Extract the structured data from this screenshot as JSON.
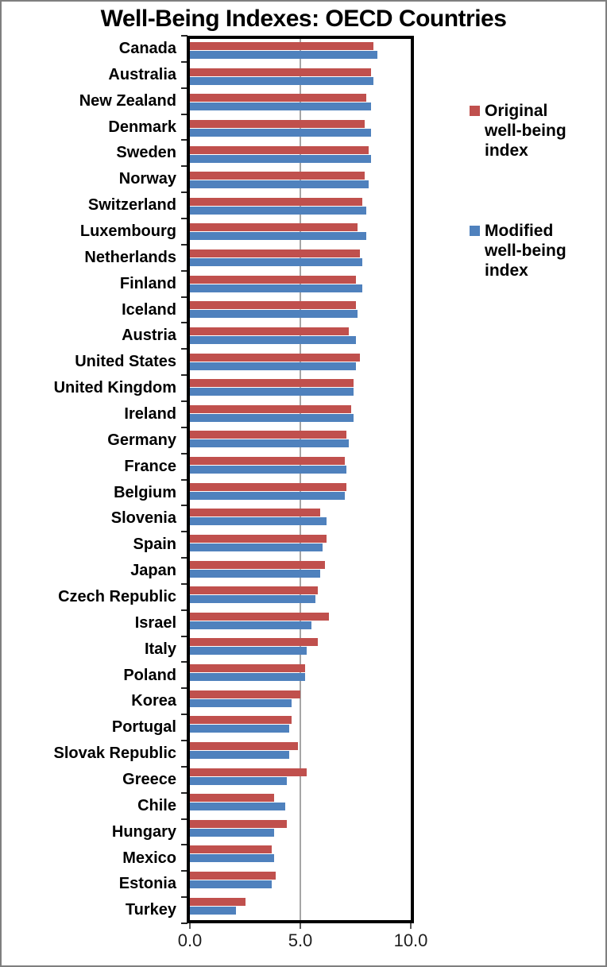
{
  "title": "Well-Being Indexes: OECD Countries",
  "legend": [
    {
      "label": "Original well-being index",
      "color": "#C0504D"
    },
    {
      "label": "Modified well-being index",
      "color": "#4F81BD"
    }
  ],
  "chart_data": {
    "type": "bar",
    "orientation": "horizontal",
    "title": "Well-Being Indexes: OECD Countries",
    "xlabel": "",
    "ylabel": "",
    "xlim": [
      0,
      10
    ],
    "x_tick_labels": [
      "0.0",
      "5.0",
      "10.0"
    ],
    "x_tick_values": [
      0,
      5,
      10
    ],
    "gridlines": [
      5
    ],
    "gridline_color": "#A6A6A6",
    "legend_position": "right",
    "categories": [
      "Canada",
      "Australia",
      "New Zealand",
      "Denmark",
      "Sweden",
      "Norway",
      "Switzerland",
      "Luxembourg",
      "Netherlands",
      "Finland",
      "Iceland",
      "Austria",
      "United States",
      "United Kingdom",
      "Ireland",
      "Germany",
      "France",
      "Belgium",
      "Slovenia",
      "Spain",
      "Japan",
      "Czech Republic",
      "Israel",
      "Italy",
      "Poland",
      "Korea",
      "Portugal",
      "Slovak Republic",
      "Greece",
      "Chile",
      "Hungary",
      "Mexico",
      "Estonia",
      "Turkey"
    ],
    "series": [
      {
        "name": "Original well-being index",
        "color": "#C0504D",
        "values": [
          8.3,
          8.2,
          8.0,
          7.9,
          8.1,
          7.9,
          7.8,
          7.6,
          7.7,
          7.5,
          7.5,
          7.2,
          7.7,
          7.4,
          7.3,
          7.1,
          7.0,
          7.1,
          5.9,
          6.2,
          6.1,
          5.8,
          6.3,
          5.8,
          5.2,
          5.0,
          4.6,
          4.9,
          5.3,
          3.8,
          4.4,
          3.7,
          3.9,
          2.5
        ]
      },
      {
        "name": "Modified well-being index",
        "color": "#4F81BD",
        "values": [
          8.5,
          8.3,
          8.2,
          8.2,
          8.2,
          8.1,
          8.0,
          8.0,
          7.8,
          7.8,
          7.6,
          7.5,
          7.5,
          7.4,
          7.4,
          7.2,
          7.1,
          7.0,
          6.2,
          6.0,
          5.9,
          5.7,
          5.5,
          5.3,
          5.2,
          4.6,
          4.5,
          4.5,
          4.4,
          4.3,
          3.8,
          3.8,
          3.7,
          2.1
        ]
      }
    ]
  }
}
